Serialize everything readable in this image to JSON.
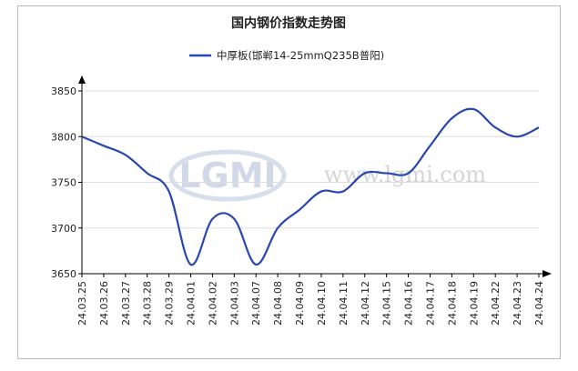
{
  "chart_data": {
    "type": "line",
    "title": "国内钢价指数走势图",
    "watermark_logo": "LGMI",
    "watermark_url": "www.lgmi.com",
    "categories": [
      "24.03.25",
      "24.03.26",
      "24.03.27",
      "24.03.28",
      "24.03.29",
      "24.04.01",
      "24.04.02",
      "24.04.03",
      "24.04.07",
      "24.04.08",
      "24.04.09",
      "24.04.10",
      "24.04.11",
      "24.04.12",
      "24.04.15",
      "24.04.16",
      "24.04.17",
      "24.04.18",
      "24.04.19",
      "24.04.22",
      "24.04.23",
      "24.04.24"
    ],
    "series": [
      {
        "name": "中厚板(邯郸14-25mmQ235B普阳)",
        "color": "#2a46b0",
        "values": [
          3800,
          3790,
          3780,
          3760,
          3740,
          3660,
          3710,
          3710,
          3660,
          3700,
          3720,
          3740,
          3740,
          3760,
          3760,
          3760,
          3790,
          3820,
          3830,
          3810,
          3800,
          3810
        ]
      }
    ],
    "ylim": [
      3650,
      3850
    ],
    "yticks": [
      3650,
      3700,
      3750,
      3800,
      3850
    ],
    "grid": true
  }
}
